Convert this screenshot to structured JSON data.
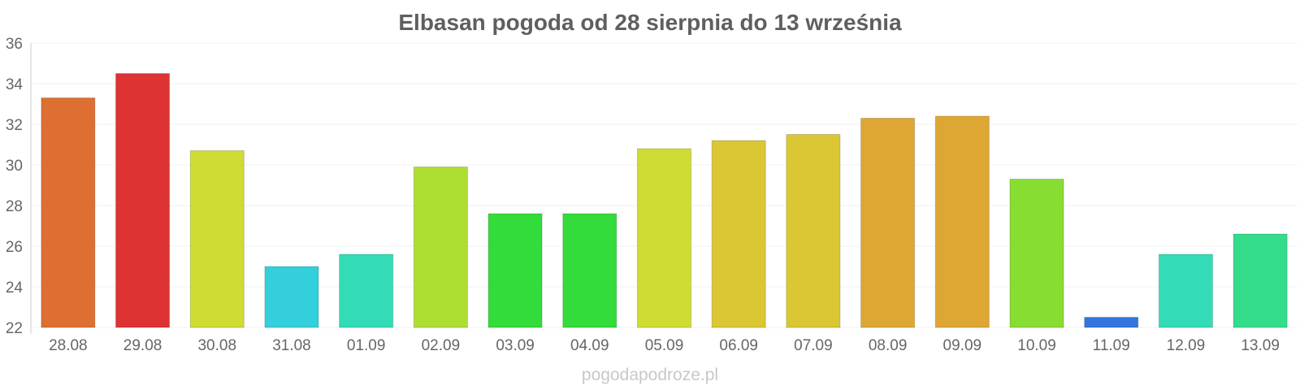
{
  "chart_data": {
    "type": "bar",
    "title": "Elbasan pogoda od 28 sierpnia do 13 września",
    "xlabel": "",
    "ylabel": "",
    "ylim": [
      22,
      36
    ],
    "yticks": [
      22,
      24,
      26,
      28,
      30,
      32,
      34,
      36
    ],
    "grid": true,
    "categories": [
      "28.08",
      "29.08",
      "30.08",
      "31.08",
      "01.09",
      "02.09",
      "03.09",
      "04.09",
      "05.09",
      "06.09",
      "07.09",
      "08.09",
      "09.09",
      "10.09",
      "11.09",
      "12.09",
      "13.09"
    ],
    "values": [
      33.3,
      34.5,
      30.7,
      25.0,
      25.6,
      29.9,
      27.6,
      27.6,
      30.8,
      31.2,
      31.5,
      32.3,
      32.4,
      29.3,
      22.5,
      25.6,
      26.6
    ],
    "colors": [
      "#de6f33",
      "#dd3333",
      "#cfdc33",
      "#33cfdc",
      "#33dcb7",
      "#addf33",
      "#33dc3a",
      "#33dc3a",
      "#cfdc33",
      "#dbc733",
      "#dbc733",
      "#dea733",
      "#dea733",
      "#88dd33",
      "#3375dd",
      "#33dcb7",
      "#33dc8a"
    ]
  },
  "watermark": "pogodapodroze.pl"
}
